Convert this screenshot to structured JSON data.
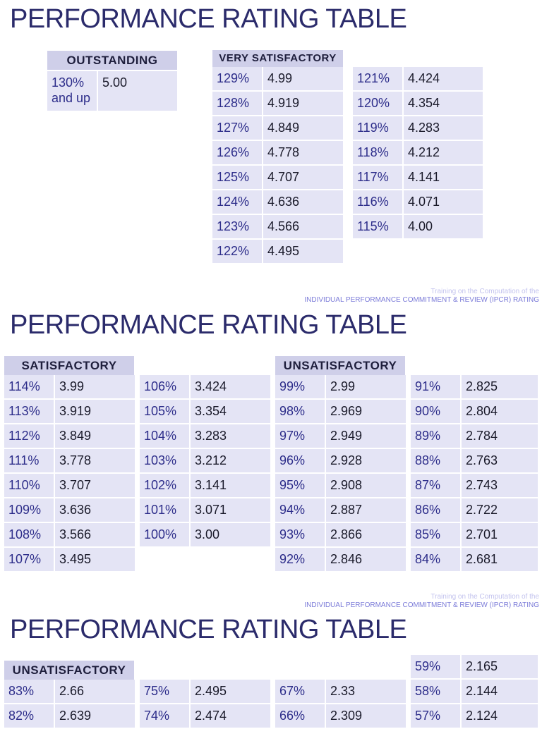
{
  "footer": {
    "line1": "Training on the Computation of the",
    "line2": "INDIVIDUAL PERFORMANCE COMMITMENT & REVIEW (IPCR) RATING"
  },
  "sections": [
    {
      "title": "PERFORMANCE RATING TABLE",
      "headers": {
        "outstanding": "OUTSTANDING",
        "very_satisfactory": "VERY SATISFACTORY"
      },
      "outstanding": {
        "pct": "130%\nand up",
        "val": "5.00"
      },
      "very_satisfactory_a": [
        [
          "129%",
          "4.99"
        ],
        [
          "128%",
          "4.919"
        ],
        [
          "127%",
          "4.849"
        ],
        [
          "126%",
          "4.778"
        ],
        [
          "125%",
          "4.707"
        ],
        [
          "124%",
          "4.636"
        ],
        [
          "123%",
          "4.566"
        ],
        [
          "122%",
          "4.495"
        ]
      ],
      "very_satisfactory_b": [
        [
          "121%",
          "4.424"
        ],
        [
          "120%",
          "4.354"
        ],
        [
          "119%",
          "4.283"
        ],
        [
          "118%",
          "4.212"
        ],
        [
          "117%",
          "4.141"
        ],
        [
          "116%",
          "4.071"
        ],
        [
          "115%",
          "4.00"
        ]
      ]
    },
    {
      "title": "PERFORMANCE RATING TABLE",
      "headers": {
        "satisfactory": "SATISFACTORY",
        "unsatisfactory": "UNSATISFACTORY"
      },
      "satisfactory_a": [
        [
          "114%",
          "3.99"
        ],
        [
          "113%",
          "3.919"
        ],
        [
          "112%",
          "3.849"
        ],
        [
          "111%",
          "3.778"
        ],
        [
          "110%",
          "3.707"
        ],
        [
          "109%",
          "3.636"
        ],
        [
          "108%",
          "3.566"
        ],
        [
          "107%",
          "3.495"
        ]
      ],
      "satisfactory_b": [
        [
          "106%",
          "3.424"
        ],
        [
          "105%",
          "3.354"
        ],
        [
          "104%",
          "3.283"
        ],
        [
          "103%",
          "3.212"
        ],
        [
          "102%",
          "3.141"
        ],
        [
          "101%",
          "3.071"
        ],
        [
          "100%",
          "3.00"
        ]
      ],
      "unsatisfactory_a": [
        [
          "99%",
          "2.99"
        ],
        [
          "98%",
          "2.969"
        ],
        [
          "97%",
          "2.949"
        ],
        [
          "96%",
          "2.928"
        ],
        [
          "95%",
          "2.908"
        ],
        [
          "94%",
          "2.887"
        ],
        [
          "93%",
          "2.866"
        ],
        [
          "92%",
          "2.846"
        ]
      ],
      "unsatisfactory_b": [
        [
          "91%",
          "2.825"
        ],
        [
          "90%",
          "2.804"
        ],
        [
          "89%",
          "2.784"
        ],
        [
          "88%",
          "2.763"
        ],
        [
          "87%",
          "2.743"
        ],
        [
          "86%",
          "2.722"
        ],
        [
          "85%",
          "2.701"
        ],
        [
          "84%",
          "2.681"
        ]
      ]
    },
    {
      "title": "PERFORMANCE RATING TABLE",
      "headers": {
        "unsatisfactory": "UNSATISFACTORY"
      },
      "col_a": [
        [
          "83%",
          "2.66"
        ],
        [
          "82%",
          "2.639"
        ]
      ],
      "col_b": [
        [
          "75%",
          "2.495"
        ],
        [
          "74%",
          "2.474"
        ]
      ],
      "col_c": [
        [
          "67%",
          "2.33"
        ],
        [
          "66%",
          "2.309"
        ]
      ],
      "col_d": [
        [
          "59%",
          "2.165"
        ],
        [
          "58%",
          "2.144"
        ],
        [
          "57%",
          "2.124"
        ]
      ]
    }
  ]
}
